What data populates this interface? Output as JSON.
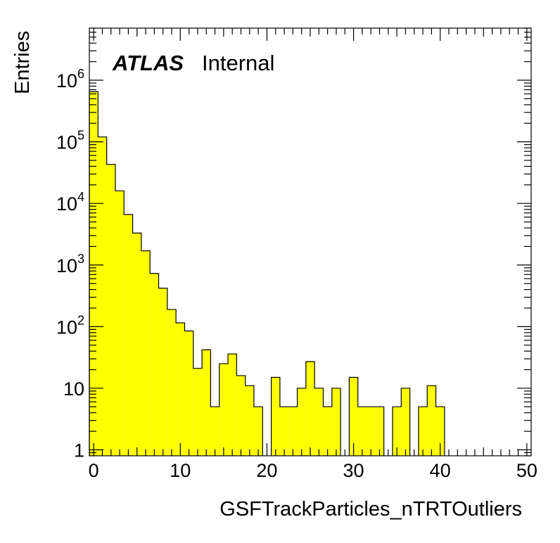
{
  "chart_data": {
    "type": "bar",
    "title": "",
    "xlabel": "GSFTrackParticles_nTRTOutliers",
    "ylabel": "Entries",
    "xlim": [
      -0.5,
      50.5
    ],
    "ylim": [
      0.8,
      7000000
    ],
    "y_scale": "log",
    "bin_width": 1,
    "fill_color": "#ffff00",
    "line_color": "#000000",
    "grid": false,
    "x_tick_labels": [
      "0",
      "10",
      "20",
      "30",
      "40",
      "50"
    ],
    "y_tick_labels": [
      {
        "base": "1",
        "exp": ""
      },
      {
        "base": "10",
        "exp": ""
      },
      {
        "base": "10",
        "exp": "2"
      },
      {
        "base": "10",
        "exp": "3"
      },
      {
        "base": "10",
        "exp": "4"
      },
      {
        "base": "10",
        "exp": "5"
      },
      {
        "base": "10",
        "exp": "6"
      }
    ],
    "x": [
      0,
      1,
      2,
      3,
      4,
      5,
      6,
      7,
      8,
      9,
      10,
      11,
      12,
      13,
      14,
      15,
      16,
      17,
      18,
      19,
      20,
      21,
      22,
      23,
      24,
      25,
      26,
      27,
      28,
      29,
      30,
      31,
      32,
      33,
      34,
      35,
      36,
      37,
      38,
      39,
      40,
      41,
      42,
      43,
      44,
      45,
      46,
      47,
      48,
      49,
      50
    ],
    "values": [
      650000,
      120000,
      43000,
      16000,
      6600,
      3300,
      1700,
      730,
      420,
      190,
      115,
      85,
      21,
      42,
      5,
      25,
      36,
      16,
      11,
      5,
      0,
      15,
      5,
      5,
      10,
      27,
      10,
      5,
      10,
      0,
      15,
      5,
      5,
      5,
      0,
      5,
      10,
      0,
      5,
      11,
      5,
      0,
      0,
      0,
      0,
      0,
      0,
      0,
      0,
      0,
      0
    ]
  },
  "annotation": {
    "experiment": "ATLAS",
    "status": "Internal"
  }
}
